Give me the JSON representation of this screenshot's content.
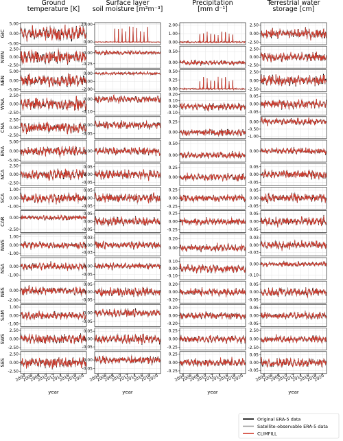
{
  "chart_data": {
    "type": "line",
    "columns": [
      {
        "title_lines": [
          "Ground",
          "temperature [K]"
        ]
      },
      {
        "title_lines": [
          "Surface layer",
          "soil moisture [m³m⁻³]"
        ]
      },
      {
        "title_lines": [
          "Precipitation",
          "[mm d⁻¹]"
        ]
      },
      {
        "title_lines": [
          "Terrestrial water",
          "storage [cm]"
        ]
      }
    ],
    "rows": [
      "GIC",
      "NWN",
      "NEN",
      "WNA",
      "CNA",
      "ENA",
      "NCA",
      "SCA",
      "CAR",
      "NWS",
      "NSA",
      "NES",
      "SAM",
      "SWS",
      "SES"
    ],
    "xlabel": "year",
    "xrange": [
      2003,
      2021
    ],
    "xticks": [
      "2004",
      "2006",
      "2008",
      "2010",
      "2012",
      "2014",
      "2016",
      "2018",
      "2020"
    ],
    "panels": [
      [
        {
          "yticks": [
            "5.00",
            "0.00",
            "-5.00"
          ],
          "ylim": [
            -5.5,
            5.5
          ],
          "amp": 3.2,
          "spikes": false
        },
        {
          "yticks": [
            "20.00",
            "0.00"
          ],
          "ylim": [
            -3,
            22
          ],
          "amp": 0.4,
          "spikes": true,
          "spike_height": 18
        },
        {
          "yticks": [
            "2.00",
            "1.00",
            "0.00"
          ],
          "ylim": [
            -0.3,
            2.3
          ],
          "amp": 0.08,
          "spikes": true,
          "spike_height": 1.3
        },
        {
          "yticks": [
            "2.50",
            "0.00",
            "-2.50"
          ],
          "ylim": [
            -3.2,
            3.2
          ],
          "amp": 1.3,
          "spikes": false
        }
      ],
      [
        {
          "yticks": [
            "2.50",
            "0.00",
            "-2.50"
          ],
          "ylim": [
            -3.4,
            3.4
          ],
          "amp": 1.9,
          "spikes": false
        },
        {
          "yticks": [
            "0.00",
            "-0.25"
          ],
          "ylim": [
            -0.35,
            0.15
          ],
          "amp": 0.04,
          "spikes": false
        },
        {
          "yticks": [
            "0.50",
            "0.00"
          ],
          "ylim": [
            -0.25,
            0.75
          ],
          "amp": 0.09,
          "spikes": false
        },
        {
          "yticks": [
            "2.50",
            "0.00",
            "-2.50"
          ],
          "ylim": [
            -3.4,
            3.4
          ],
          "amp": 1.2,
          "spikes": false
        }
      ],
      [
        {
          "yticks": [
            "5.00",
            "0.00",
            "-5.00"
          ],
          "ylim": [
            -6,
            6
          ],
          "amp": 3.0,
          "spikes": false
        },
        {
          "yticks": [
            "0.00",
            "-1.00",
            "-2.00"
          ],
          "ylim": [
            -2.3,
            0.5
          ],
          "amp": 0.15,
          "spikes": true,
          "spike_height": 0.25
        },
        {
          "yticks": [
            "0.50",
            "0.25",
            "0.00"
          ],
          "ylim": [
            -0.08,
            0.55
          ],
          "amp": 0.02,
          "spikes": true,
          "spike_height": 0.35
        },
        {
          "yticks": [
            "2.50",
            "0.00",
            "-2.50"
          ],
          "ylim": [
            -3.2,
            3.2
          ],
          "amp": 1.4,
          "spikes": false
        }
      ],
      [
        {
          "yticks": [
            "2.50",
            "0.00",
            "-2.50"
          ],
          "ylim": [
            -3.2,
            3.2
          ],
          "amp": 1.6,
          "spikes": false
        },
        {
          "yticks": [
            "0.00",
            "-0.10"
          ],
          "ylim": [
            -0.13,
            0.05
          ],
          "amp": 0.025,
          "spikes": false
        },
        {
          "yticks": [
            "0.20",
            "0.10",
            "0.00",
            "-0.10"
          ],
          "ylim": [
            -0.14,
            0.22
          ],
          "amp": 0.05,
          "spikes": false
        },
        {
          "yticks": [
            "0.05",
            "0.00",
            "-0.05"
          ],
          "ylim": [
            -0.07,
            0.07
          ],
          "amp": 0.025,
          "spikes": false
        }
      ],
      [
        {
          "yticks": [
            "2.50",
            "0.00",
            "-2.50"
          ],
          "ylim": [
            -3.5,
            3.5
          ],
          "amp": 1.6,
          "spikes": false
        },
        {
          "yticks": [
            "0.00",
            "-0.05"
          ],
          "ylim": [
            -0.08,
            0.05
          ],
          "amp": 0.02,
          "spikes": false
        },
        {
          "yticks": [
            "0.25",
            "0.00"
          ],
          "ylim": [
            -0.15,
            0.38
          ],
          "amp": 0.08,
          "spikes": false
        },
        {
          "yticks": [
            "0.00",
            "-0.50",
            "-1.00"
          ],
          "ylim": [
            -1.15,
            0.35
          ],
          "amp": 0.2,
          "spikes": false
        }
      ],
      [
        {
          "yticks": [
            "5.00",
            "0.00",
            "-5.00"
          ],
          "ylim": [
            -6,
            6
          ],
          "amp": 2.2,
          "spikes": false
        },
        {
          "yticks": [
            "0.00"
          ],
          "ylim": [
            -0.08,
            0.08
          ],
          "amp": 0.025,
          "spikes": false
        },
        {
          "yticks": [
            "0.50",
            "0.00"
          ],
          "ylim": [
            -0.3,
            0.65
          ],
          "amp": 0.12,
          "spikes": false
        },
        {
          "yticks": [
            "0.00"
          ],
          "ylim": [
            -0.12,
            0.12
          ],
          "amp": 0.03,
          "spikes": false
        }
      ],
      [
        {
          "yticks": [
            "2.50",
            "0.00",
            "-2.50"
          ],
          "ylim": [
            -3.2,
            3.2
          ],
          "amp": 1.4,
          "spikes": false
        },
        {
          "yticks": [
            "0.05",
            "0.00",
            "-0.05"
          ],
          "ylim": [
            -0.07,
            0.07
          ],
          "amp": 0.025,
          "spikes": false
        },
        {
          "yticks": [
            "0.25",
            "0.00"
          ],
          "ylim": [
            -0.22,
            0.35
          ],
          "amp": 0.08,
          "spikes": false
        },
        {
          "yticks": [
            "0.05",
            "0.00",
            "-0.05"
          ],
          "ylim": [
            -0.07,
            0.07
          ],
          "amp": 0.025,
          "spikes": false
        }
      ],
      [
        {
          "yticks": [
            "1.00",
            "0.00",
            "-1.00"
          ],
          "ylim": [
            -1.3,
            1.3
          ],
          "amp": 0.5,
          "spikes": false
        },
        {
          "yticks": [
            "0.05",
            "0.00",
            "-0.05"
          ],
          "ylim": [
            -0.07,
            0.07
          ],
          "amp": 0.025,
          "spikes": false
        },
        {
          "yticks": [
            "0.25",
            "0.00",
            "-0.25"
          ],
          "ylim": [
            -0.33,
            0.33
          ],
          "amp": 0.1,
          "spikes": false
        },
        {
          "yticks": [
            "0.05",
            "0.00",
            "-0.05"
          ],
          "ylim": [
            -0.07,
            0.07
          ],
          "amp": 0.025,
          "spikes": false
        }
      ],
      [
        {
          "yticks": [
            "0.00",
            "-2.50"
          ],
          "ylim": [
            -3.2,
            1.5
          ],
          "amp": 0.5,
          "spikes": false
        },
        {
          "yticks": [
            "0.05",
            "0.00",
            "-0.05"
          ],
          "ylim": [
            -0.07,
            0.07
          ],
          "amp": 0.025,
          "spikes": false
        },
        {
          "yticks": [
            "0.25",
            "0.00",
            "-0.25"
          ],
          "ylim": [
            -0.33,
            0.33
          ],
          "amp": 0.1,
          "spikes": false
        },
        {
          "yticks": [
            "0.05",
            "0.00",
            "-0.05"
          ],
          "ylim": [
            -0.07,
            0.07
          ],
          "amp": 0.025,
          "spikes": false
        }
      ],
      [
        {
          "yticks": [
            "1.00",
            "0.00",
            "-1.00"
          ],
          "ylim": [
            -1.3,
            1.3
          ],
          "amp": 0.4,
          "spikes": false
        },
        {
          "yticks": [
            "0.03",
            "0.00",
            "-0.03"
          ],
          "ylim": [
            -0.045,
            0.045
          ],
          "amp": 0.012,
          "spikes": false
        },
        {
          "yticks": [
            "0.20",
            "0.00"
          ],
          "ylim": [
            -0.18,
            0.3
          ],
          "amp": 0.07,
          "spikes": false
        },
        {
          "yticks": [
            "0.03",
            "0.00",
            "-0.03"
          ],
          "ylim": [
            -0.045,
            0.045
          ],
          "amp": 0.015,
          "spikes": false
        }
      ],
      [
        {
          "yticks": [
            "0.00",
            "-1.00"
          ],
          "ylim": [
            -1.5,
            1.0
          ],
          "amp": 0.4,
          "spikes": false
        },
        {
          "yticks": [
            "0.00",
            "-0.05"
          ],
          "ylim": [
            -0.08,
            0.05
          ],
          "amp": 0.015,
          "spikes": false
        },
        {
          "yticks": [
            "0.10",
            "0.00",
            "-0.10"
          ],
          "ylim": [
            -0.15,
            0.15
          ],
          "amp": 0.05,
          "spikes": false
        },
        {
          "yticks": [
            "0.00",
            "-0.10"
          ],
          "ylim": [
            -0.14,
            0.06
          ],
          "amp": 0.02,
          "spikes": false
        }
      ],
      [
        {
          "yticks": [
            "0.00",
            "-2.00"
          ],
          "ylim": [
            -2.6,
            2.0
          ],
          "amp": 0.8,
          "spikes": false
        },
        {
          "yticks": [
            "0.05",
            "0.00",
            "-0.05"
          ],
          "ylim": [
            -0.07,
            0.07
          ],
          "amp": 0.025,
          "spikes": false
        },
        {
          "yticks": [
            "0.20",
            "0.00",
            "-0.20"
          ],
          "ylim": [
            -0.28,
            0.28
          ],
          "amp": 0.09,
          "spikes": false
        },
        {
          "yticks": [
            "0.05",
            "0.00",
            "-0.05"
          ],
          "ylim": [
            -0.07,
            0.07
          ],
          "amp": 0.025,
          "spikes": false
        }
      ],
      [
        {
          "yticks": [
            "1.00",
            "0.00",
            "-1.00"
          ],
          "ylim": [
            -1.3,
            1.3
          ],
          "amp": 0.45,
          "spikes": false
        },
        {
          "yticks": [
            "0.00",
            "-0.05"
          ],
          "ylim": [
            -0.08,
            0.05
          ],
          "amp": 0.02,
          "spikes": false
        },
        {
          "yticks": [
            "0.20",
            "0.00",
            "-0.20"
          ],
          "ylim": [
            -0.28,
            0.28
          ],
          "amp": 0.09,
          "spikes": false
        },
        {
          "yticks": [
            "0.05",
            "0.00",
            "-0.05"
          ],
          "ylim": [
            -0.07,
            0.07
          ],
          "amp": 0.02,
          "spikes": false
        }
      ],
      [
        {
          "yticks": [
            "2.50",
            "0.00",
            "-2.50"
          ],
          "ylim": [
            -3.2,
            3.2
          ],
          "amp": 1.3,
          "spikes": false
        },
        {
          "yticks": [
            "0.05",
            "0.00",
            "-0.05"
          ],
          "ylim": [
            -0.07,
            0.07
          ],
          "amp": 0.025,
          "spikes": false
        },
        {
          "yticks": [
            "0.25",
            "0.00",
            "-0.25"
          ],
          "ylim": [
            -0.33,
            0.33
          ],
          "amp": 0.1,
          "spikes": false
        },
        {
          "yticks": [
            "2.50",
            "0.00",
            "-2.50"
          ],
          "ylim": [
            -3.2,
            3.2
          ],
          "amp": 0.9,
          "spikes": false
        }
      ],
      [
        {
          "yticks": [
            "2.50",
            "0.00",
            "-2.50"
          ],
          "ylim": [
            -3.2,
            3.2
          ],
          "amp": 1.4,
          "spikes": false
        },
        {
          "yticks": [
            "0.00",
            "-0.05"
          ],
          "ylim": [
            -0.08,
            0.05
          ],
          "amp": 0.02,
          "spikes": false
        },
        {
          "yticks": [
            "0.25",
            "0.00",
            "-0.25"
          ],
          "ylim": [
            -0.33,
            0.33
          ],
          "amp": 0.11,
          "spikes": false
        },
        {
          "yticks": [
            "0.05",
            "0.00",
            "-0.05"
          ],
          "ylim": [
            -0.07,
            0.07
          ],
          "amp": 0.025,
          "spikes": false
        }
      ]
    ],
    "series": [
      {
        "name": "Original ERA-5 data",
        "color": "#000000"
      },
      {
        "name": "Satellite-observable ERA-5 data",
        "color": "#9a9a9a"
      },
      {
        "name": "CLIMFILL",
        "color": "#d03a2c"
      }
    ],
    "legend_position": "bottom-right",
    "grid": true
  }
}
